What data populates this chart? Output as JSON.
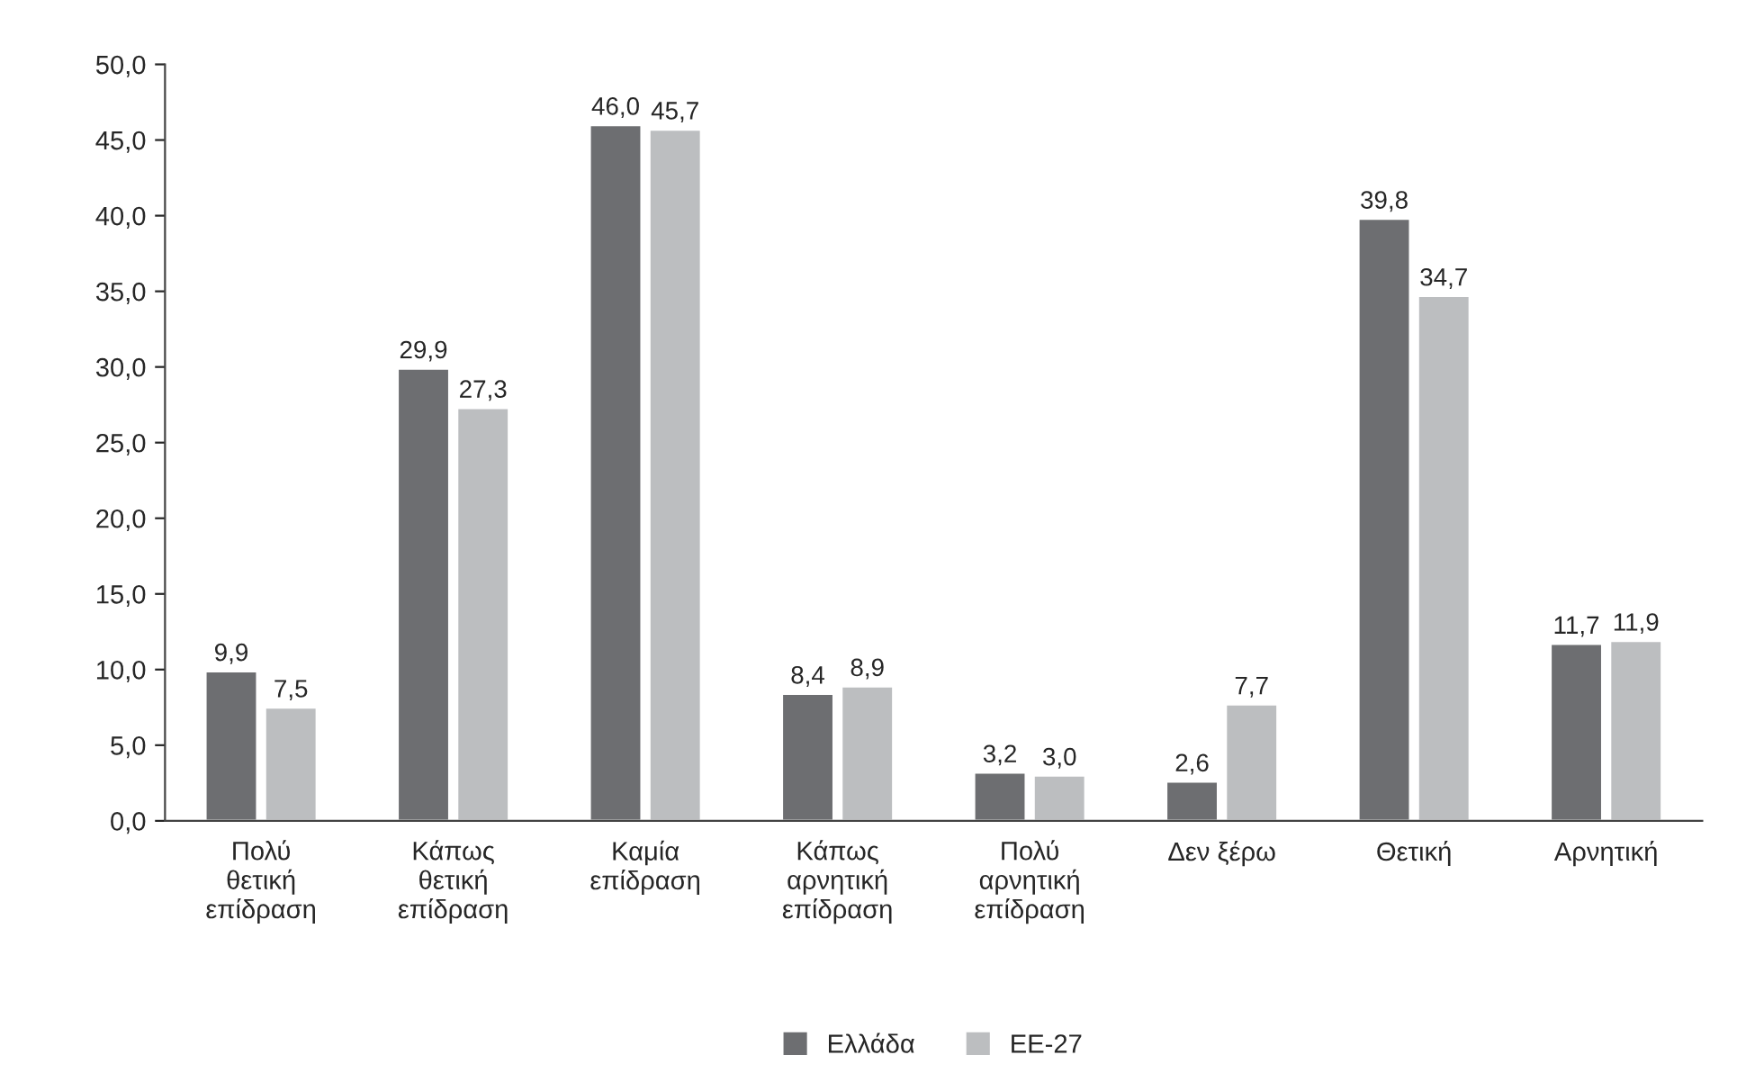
{
  "chart_data": {
    "type": "bar",
    "categories": [
      "Πολύ\nθετική\nεπίδραση",
      "Κάπως\nθετική\nεπίδραση",
      "Καμία\nεπίδραση",
      "Κάπως\nαρνητική\nεπίδραση",
      "Πολύ\nαρνητική\nεπίδραση",
      "Δεν ξέρω",
      "Θετική",
      "Αρνητική"
    ],
    "series": [
      {
        "name": "Ελλάδα",
        "color": "#6d6e71",
        "values": [
          9.9,
          29.9,
          46.0,
          8.4,
          3.2,
          2.6,
          39.8,
          11.7
        ],
        "value_labels": [
          "9,9",
          "29,9",
          "46,0",
          "8,4",
          "3,2",
          "2,6",
          "39,8",
          "11,7"
        ]
      },
      {
        "name": "ΕΕ-27",
        "color": "#bcbec0",
        "values": [
          7.5,
          27.3,
          45.7,
          8.9,
          3.0,
          7.7,
          34.7,
          11.9
        ],
        "value_labels": [
          "7,5",
          "27,3",
          "45,7",
          "8,9",
          "3,0",
          "7,7",
          "34,7",
          "11,9"
        ]
      }
    ],
    "ylim": [
      0,
      50
    ],
    "yticks": [
      {
        "value": 0,
        "label": "0,0"
      },
      {
        "value": 5,
        "label": "5,0"
      },
      {
        "value": 10,
        "label": "10,0"
      },
      {
        "value": 15,
        "label": "15,0"
      },
      {
        "value": 20,
        "label": "20,0"
      },
      {
        "value": 25,
        "label": "25,0"
      },
      {
        "value": 30,
        "label": "30,0"
      },
      {
        "value": 35,
        "label": "35,0"
      },
      {
        "value": 40,
        "label": "40,0"
      },
      {
        "value": 45,
        "label": "45,0"
      },
      {
        "value": 50,
        "label": "50,0"
      }
    ],
    "grid": false,
    "legend": "bottom"
  }
}
